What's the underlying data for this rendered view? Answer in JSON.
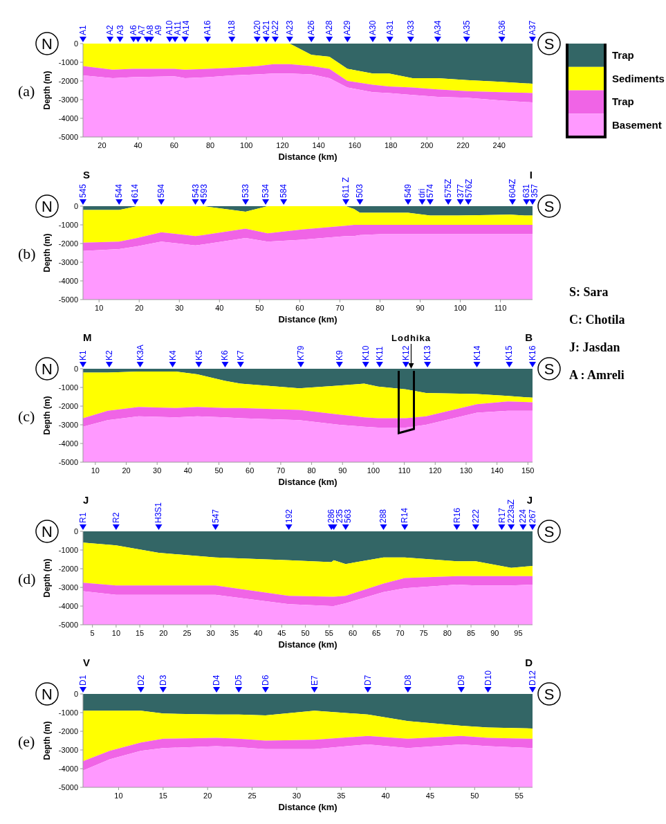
{
  "chart_data": [
    {
      "type": "area",
      "stacked": true,
      "xlabel": "Distance (km)",
      "ylabel": "Depth (m)",
      "xlim": [
        9.5,
        258.5
      ],
      "ylim": [
        -5000,
        0
      ],
      "xticks": [
        20,
        40,
        60,
        80,
        100,
        120,
        140,
        160,
        180,
        200,
        220,
        240
      ],
      "yticks": [
        0,
        -1000,
        -2000,
        -3000,
        -4000,
        -5000
      ],
      "legend": "right",
      "x": [
        9.5,
        26,
        37,
        60,
        66,
        79,
        92,
        106,
        115,
        124,
        136,
        146,
        156,
        170,
        179,
        192,
        206,
        222,
        241,
        258.5
      ],
      "series": [
        {
          "name": "Trap",
          "color": "#336666",
          "values": [
            0,
            0,
            0,
            0,
            0,
            0,
            0,
            0,
            0,
            0,
            -600,
            -700,
            -1350,
            -1600,
            -1600,
            -1850,
            -1850,
            -1950,
            -2050,
            -2150
          ]
        },
        {
          "name": "Sediments",
          "color": "#ffff00",
          "values": [
            -1200,
            -1400,
            -1350,
            -1350,
            -1400,
            -1350,
            -1300,
            -1200,
            -1100,
            -1100,
            -600,
            -650,
            -650,
            -600,
            -700,
            -500,
            -600,
            -600,
            -550,
            -500
          ]
        },
        {
          "name": "Trap",
          "color": "#f064e6",
          "values": [
            -500,
            -450,
            -450,
            -400,
            -450,
            -450,
            -400,
            -450,
            -500,
            -500,
            -450,
            -500,
            -350,
            -400,
            -350,
            -400,
            -400,
            -350,
            -450,
            -500
          ]
        },
        {
          "name": "Basement",
          "color": "#ff99ff",
          "values": [
            -3300,
            -3150,
            -3200,
            -3250,
            -3150,
            -3200,
            -3300,
            -3350,
            -3400,
            -3400,
            -3350,
            -3150,
            -2650,
            -2400,
            -2350,
            -2250,
            -2150,
            -2100,
            -1950,
            -1850
          ]
        }
      ],
      "annotations": [
        "(a)",
        "N",
        "S",
        {
          "text": "A1",
          "x": 9.5,
          "y": 0
        },
        {
          "text": "A2",
          "x": 24.5,
          "y": 0
        },
        {
          "text": "A3",
          "x": 30,
          "y": 0
        },
        {
          "text": "A6",
          "x": 37.5,
          "y": 0
        },
        {
          "text": "A7",
          "x": 40,
          "y": 0
        },
        {
          "text": "A8",
          "x": 45,
          "y": 0
        },
        {
          "text": "A9",
          "x": 47,
          "y": 0
        },
        {
          "text": "A10",
          "x": 57.5,
          "y": 0
        },
        {
          "text": "A11",
          "x": 60.5,
          "y": 0
        },
        {
          "text": "A14",
          "x": 66,
          "y": 0
        },
        {
          "text": "A16",
          "x": 78.5,
          "y": 0
        },
        {
          "text": "A18",
          "x": 92,
          "y": 0
        },
        {
          "text": "A20",
          "x": 106,
          "y": 0
        },
        {
          "text": "A21",
          "x": 111,
          "y": 0
        },
        {
          "text": "A22",
          "x": 116,
          "y": 0
        },
        {
          "text": "A23",
          "x": 124,
          "y": 0
        },
        {
          "text": "A26",
          "x": 136,
          "y": 0
        },
        {
          "text": "A28",
          "x": 146,
          "y": 0
        },
        {
          "text": "A29",
          "x": 156,
          "y": 0
        },
        {
          "text": "A30",
          "x": 170,
          "y": 0
        },
        {
          "text": "A31",
          "x": 179.5,
          "y": 0
        },
        {
          "text": "A33",
          "x": 191,
          "y": 0
        },
        {
          "text": "A34",
          "x": 206,
          "y": 0
        },
        {
          "text": "A35",
          "x": 222,
          "y": 0
        },
        {
          "text": "A36",
          "x": 241.5,
          "y": 0
        },
        {
          "text": "A37",
          "x": 258.5,
          "y": 0
        }
      ]
    },
    {
      "type": "area",
      "stacked": true,
      "xlabel": "Distance (km)",
      "ylabel": "Depth (m)",
      "xlim": [
        6,
        118
      ],
      "ylim": [
        -5000,
        0
      ],
      "xticks": [
        10,
        20,
        30,
        40,
        50,
        60,
        70,
        80,
        90,
        100,
        110
      ],
      "yticks": [
        0,
        -1000,
        -2000,
        -3000,
        -4000,
        -5000
      ],
      "x": [
        6,
        15,
        19.5,
        25.5,
        34,
        36,
        46.5,
        52,
        60.5,
        71.5,
        73.5,
        75,
        80,
        87,
        92.5,
        99.5,
        112.5,
        116,
        118
      ],
      "series": [
        {
          "color": "#336666",
          "values": [
            -200,
            -200,
            0,
            0,
            0,
            0,
            -300,
            0,
            0,
            0,
            -150,
            -350,
            -350,
            -350,
            -500,
            -500,
            -450,
            -500,
            -500
          ]
        },
        {
          "color": "#ffff00",
          "values": [
            -1750,
            -1700,
            -1700,
            -1400,
            -1600,
            -1550,
            -900,
            -1450,
            -1250,
            -1050,
            -850,
            -650,
            -650,
            -650,
            -500,
            -500,
            -550,
            -500,
            -500
          ]
        },
        {
          "color": "#f064e6",
          "values": [
            -450,
            -400,
            -450,
            -500,
            -500,
            -500,
            -500,
            -450,
            -550,
            -550,
            -600,
            -550,
            -500,
            -500,
            -500,
            -500,
            -500,
            -500,
            -500
          ]
        },
        {
          "color": "#ff99ff",
          "values": [
            -2600,
            -2700,
            -2850,
            -3100,
            -2900,
            -2950,
            -3300,
            -3100,
            -3200,
            -3400,
            -3400,
            -3450,
            -3500,
            -3500,
            -3500,
            -3500,
            -3500,
            -3500,
            -3500
          ]
        }
      ],
      "annotations": [
        "(b)",
        "N",
        "S",
        "S",
        "I",
        {
          "text": "545",
          "x": 6,
          "y": 0
        },
        {
          "text": "544",
          "x": 15,
          "y": 0
        },
        {
          "text": "614",
          "x": 19,
          "y": 0
        },
        {
          "text": "594",
          "x": 25.5,
          "y": 0
        },
        {
          "text": "543",
          "x": 34,
          "y": 0
        },
        {
          "text": "593",
          "x": 36,
          "y": 0
        },
        {
          "text": "533",
          "x": 46.5,
          "y": 0
        },
        {
          "text": "534",
          "x": 51.5,
          "y": 0
        },
        {
          "text": "584",
          "x": 56,
          "y": 0
        },
        {
          "text": "611 Z",
          "x": 71.5,
          "y": 0
        },
        {
          "text": "503",
          "x": 75,
          "y": 0
        },
        {
          "text": "549",
          "x": 87,
          "y": 0
        },
        {
          "text": "dri",
          "x": 90.5,
          "y": 0
        },
        {
          "text": "574",
          "x": 92.5,
          "y": 0
        },
        {
          "text": "575Z",
          "x": 97,
          "y": 0
        },
        {
          "text": "377",
          "x": 100,
          "y": 0
        },
        {
          "text": "576Z",
          "x": 102,
          "y": 0
        },
        {
          "text": "604Z",
          "x": 113,
          "y": 0
        },
        {
          "text": "631",
          "x": 116.5,
          "y": 0
        },
        {
          "text": "357",
          "x": 118,
          "y": 0
        }
      ]
    },
    {
      "type": "area",
      "stacked": true,
      "xlabel": "Distance (km)",
      "ylabel": "Depth (m)",
      "xlim": [
        6,
        151.5
      ],
      "ylim": [
        -5000,
        0
      ],
      "xticks": [
        10,
        20,
        30,
        40,
        50,
        60,
        70,
        80,
        90,
        100,
        110,
        120,
        130,
        140,
        150
      ],
      "yticks": [
        0,
        -1000,
        -2000,
        -3000,
        -4000,
        -5000
      ],
      "x": [
        6,
        14,
        24,
        36,
        43,
        52,
        57,
        76,
        89,
        97,
        101.5,
        110.5,
        117,
        133.5,
        143.5,
        151.5
      ],
      "series": [
        {
          "color": "#336666",
          "values": [
            -200,
            -200,
            -150,
            -150,
            -300,
            -650,
            -800,
            -1050,
            -900,
            -800,
            -950,
            -1100,
            -1300,
            -1350,
            -1450,
            -1550
          ]
        },
        {
          "color": "#ffff00",
          "values": [
            -2450,
            -2050,
            -1900,
            -1950,
            -1750,
            -1450,
            -1300,
            -1150,
            -1550,
            -1800,
            -1700,
            -1550,
            -1250,
            -550,
            -300,
            -250
          ]
        },
        {
          "color": "#f064e6",
          "values": [
            -450,
            -500,
            -500,
            -500,
            -500,
            -500,
            -550,
            -550,
            -550,
            -500,
            -500,
            -500,
            -450,
            -450,
            -500,
            -450
          ]
        },
        {
          "color": "#ff99ff",
          "values": [
            -1900,
            -2250,
            -2450,
            -2400,
            -2450,
            -2400,
            -2350,
            -2250,
            -2000,
            -1900,
            -1850,
            -1850,
            -2000,
            -2650,
            -2750,
            -2750
          ]
        }
      ],
      "annotations": [
        "(c)",
        "N",
        "S",
        "M",
        "B",
        "Lodhika",
        {
          "text": "K1",
          "x": 6,
          "y": 0
        },
        {
          "text": "K2",
          "x": 14.5,
          "y": 0
        },
        {
          "text": "K3A",
          "x": 24.5,
          "y": 0
        },
        {
          "text": "K4",
          "x": 35,
          "y": 0
        },
        {
          "text": "K5",
          "x": 43.5,
          "y": 0
        },
        {
          "text": "K6",
          "x": 52,
          "y": 0
        },
        {
          "text": "K7",
          "x": 57,
          "y": 0
        },
        {
          "text": "K79",
          "x": 76.5,
          "y": 0
        },
        {
          "text": "K9",
          "x": 89,
          "y": 0
        },
        {
          "text": "K10",
          "x": 97.5,
          "y": 0
        },
        {
          "text": "K11",
          "x": 102,
          "y": 0
        },
        {
          "text": "K12",
          "x": 110.5,
          "y": 0
        },
        {
          "text": "K13",
          "x": 117.5,
          "y": 0
        },
        {
          "text": "K14",
          "x": 133.5,
          "y": 0
        },
        {
          "text": "K15",
          "x": 144,
          "y": 0
        },
        {
          "text": "K16",
          "x": 151.5,
          "y": 0
        }
      ]
    },
    {
      "type": "area",
      "stacked": true,
      "xlabel": "Distance (km)",
      "ylabel": "Depth (m)",
      "xlim": [
        3,
        98
      ],
      "ylim": [
        -5000,
        0
      ],
      "xticks": [
        5,
        10,
        15,
        20,
        25,
        30,
        35,
        40,
        45,
        50,
        55,
        60,
        65,
        70,
        75,
        80,
        85,
        90,
        95
      ],
      "yticks": [
        0,
        -1000,
        -2000,
        -3000,
        -4000,
        -5000
      ],
      "x": [
        3,
        10,
        19,
        31,
        46.5,
        55.5,
        56,
        58.5,
        66.5,
        71,
        82,
        86,
        93.5,
        98
      ],
      "series": [
        {
          "color": "#336666",
          "values": [
            -600,
            -750,
            -1150,
            -1400,
            -1550,
            -1650,
            -1550,
            -1750,
            -1400,
            -1400,
            -1600,
            -1600,
            -1950,
            -1850
          ]
        },
        {
          "color": "#ffff00",
          "values": [
            -2150,
            -2150,
            -1750,
            -1500,
            -1900,
            -1850,
            -1950,
            -1700,
            -1400,
            -1100,
            -800,
            -800,
            -450,
            -550
          ]
        },
        {
          "color": "#f064e6",
          "values": [
            -450,
            -500,
            -500,
            -500,
            -450,
            -500,
            -500,
            -400,
            -450,
            -550,
            -450,
            -500,
            -500,
            -450
          ]
        },
        {
          "color": "#ff99ff",
          "values": [
            -1800,
            -1600,
            -1600,
            -1600,
            -1100,
            -1000,
            -1000,
            -1150,
            -1750,
            -1950,
            -2150,
            -2100,
            -2100,
            -2150
          ]
        }
      ],
      "annotations": [
        "(d)",
        "N",
        "S",
        "J",
        "J",
        {
          "text": "R1",
          "x": 3,
          "y": 0
        },
        {
          "text": "R2",
          "x": 10,
          "y": 0
        },
        {
          "text": "H3S1",
          "x": 19,
          "y": 0
        },
        {
          "text": "547",
          "x": 31,
          "y": 0
        },
        {
          "text": "192",
          "x": 46.5,
          "y": 0
        },
        {
          "text": "286",
          "x": 55.5,
          "y": 0
        },
        {
          "text": "235",
          "x": 56,
          "y": 0
        },
        {
          "text": "563",
          "x": 58.5,
          "y": 0
        },
        {
          "text": "288",
          "x": 66.5,
          "y": 0
        },
        {
          "text": "R14",
          "x": 71,
          "y": 0
        },
        {
          "text": "R16",
          "x": 82,
          "y": 0
        },
        {
          "text": "222",
          "x": 86,
          "y": 0
        },
        {
          "text": "R17",
          "x": 91.5,
          "y": 0
        },
        {
          "text": "223aZ",
          "x": 93.5,
          "y": 0
        },
        {
          "text": "224",
          "x": 96,
          "y": 0
        },
        {
          "text": "267",
          "x": 98,
          "y": 0
        }
      ]
    },
    {
      "type": "area",
      "stacked": true,
      "xlabel": "Distance (km)",
      "ylabel": "Depth (m)",
      "xlim": [
        6,
        56.5
      ],
      "ylim": [
        -5000,
        0
      ],
      "xticks": [
        10,
        15,
        20,
        25,
        30,
        35,
        40,
        45,
        50,
        55
      ],
      "yticks": [
        0,
        -1000,
        -2000,
        -3000,
        -4000,
        -5000
      ],
      "x": [
        6,
        9,
        12.5,
        15,
        21,
        23.5,
        26.5,
        32,
        38,
        42.5,
        48.5,
        51.5,
        56.5
      ],
      "series": [
        {
          "color": "#336666",
          "values": [
            -900,
            -900,
            -900,
            -1050,
            -1100,
            -1100,
            -1150,
            -900,
            -1100,
            -1450,
            -1700,
            -1800,
            -1850
          ]
        },
        {
          "color": "#ffff00",
          "values": [
            -2700,
            -2150,
            -1700,
            -1350,
            -1250,
            -1300,
            -1350,
            -1550,
            -1150,
            -950,
            -550,
            -550,
            -550
          ]
        },
        {
          "color": "#f064e6",
          "values": [
            -500,
            -450,
            -450,
            -500,
            -450,
            -450,
            -450,
            -500,
            -450,
            -500,
            -450,
            -450,
            -500
          ]
        },
        {
          "color": "#ff99ff",
          "values": [
            -900,
            -1500,
            -1950,
            -2100,
            -2200,
            -2150,
            -2050,
            -2050,
            -2300,
            -2100,
            -2300,
            -2200,
            -2100
          ]
        }
      ],
      "annotations": [
        "(e)",
        "N",
        "S",
        "V",
        "D",
        {
          "text": "D1",
          "x": 6,
          "y": 0
        },
        {
          "text": "D2",
          "x": 12.5,
          "y": 0
        },
        {
          "text": "D3",
          "x": 15,
          "y": 0
        },
        {
          "text": "D4",
          "x": 21,
          "y": 0
        },
        {
          "text": "D5",
          "x": 23.5,
          "y": 0
        },
        {
          "text": "D6",
          "x": 26.5,
          "y": 0
        },
        {
          "text": "E7",
          "x": 32,
          "y": 0
        },
        {
          "text": "D7",
          "x": 38,
          "y": 0
        },
        {
          "text": "D8",
          "x": 42.5,
          "y": 0
        },
        {
          "text": "D9",
          "x": 48.5,
          "y": 0
        },
        {
          "text": "D10",
          "x": 51.5,
          "y": 0
        },
        {
          "text": "D12",
          "x": 56.5,
          "y": 0
        }
      ]
    },
    {
      "type": "other",
      "annotations": [
        "S: Sara",
        "C: Chotila",
        "J: Jasdan",
        "A : Amreli"
      ]
    }
  ]
}
